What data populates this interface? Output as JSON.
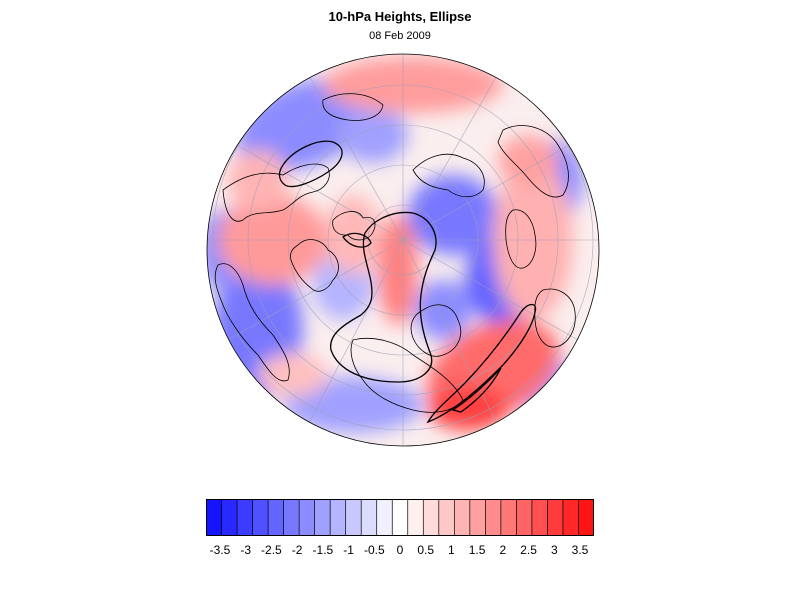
{
  "title": "10-hPa Heights, Ellipse",
  "subtitle": "08 Feb 2009",
  "map": {
    "projection": "north polar orthographic",
    "field_colors": {
      "negative": "#5a5aff",
      "neutral": "#ffffff",
      "positive": "#ff4a4a"
    },
    "contour_color": "#000000",
    "graticule_color": "#9aa0b8"
  },
  "colorbar": {
    "colors": [
      "#1414ff",
      "#2828ff",
      "#3c3cff",
      "#5050ff",
      "#6464ff",
      "#7878ff",
      "#8c8cff",
      "#a0a0ff",
      "#b4b4ff",
      "#c8c8ff",
      "#dcdcff",
      "#f0f0ff",
      "#ffffff",
      "#fff0f0",
      "#ffdcdc",
      "#ffc8c8",
      "#ffb4b4",
      "#ffa0a0",
      "#ff8c8c",
      "#ff7878",
      "#ff6464",
      "#ff5050",
      "#ff3c3c",
      "#ff2828",
      "#ff1414"
    ],
    "tick_labels": [
      "-3.5",
      "-3",
      "-2.5",
      "-2",
      "-1.5",
      "-1",
      "-0.5",
      "0",
      "0.5",
      "1",
      "1.5",
      "2",
      "2.5",
      "3",
      "3.5"
    ]
  }
}
